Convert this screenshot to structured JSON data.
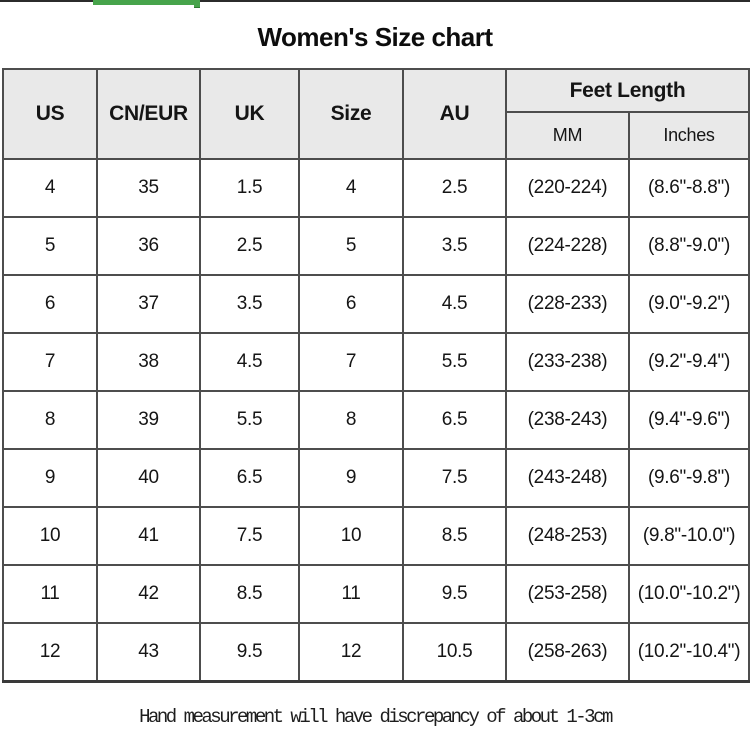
{
  "page": {
    "title": "Women's Size chart",
    "footer_note": "Hand measurement will have discrepancy of about 1-3cm"
  },
  "colors": {
    "progress_green": "#47a44b",
    "header_bg": "#e9e9e9",
    "table_border": "#4d4d4d"
  },
  "table": {
    "headers": {
      "us": "US",
      "cn_eur": "CN/EUR",
      "uk": "UK",
      "size": "Size",
      "au": "AU",
      "feet_length": "Feet Length",
      "mm": "MM",
      "inches": "Inches"
    },
    "rows": [
      [
        "4",
        "35",
        "1.5",
        "4",
        "2.5",
        "(220-224)",
        "(8.6\"-8.8\")"
      ],
      [
        "5",
        "36",
        "2.5",
        "5",
        "3.5",
        "(224-228)",
        "(8.8\"-9.0\")"
      ],
      [
        "6",
        "37",
        "3.5",
        "6",
        "4.5",
        "(228-233)",
        "(9.0\"-9.2\")"
      ],
      [
        "7",
        "38",
        "4.5",
        "7",
        "5.5",
        "(233-238)",
        "(9.2\"-9.4\")"
      ],
      [
        "8",
        "39",
        "5.5",
        "8",
        "6.5",
        "(238-243)",
        "(9.4\"-9.6\")"
      ],
      [
        "9",
        "40",
        "6.5",
        "9",
        "7.5",
        "(243-248)",
        "(9.6\"-9.8\")"
      ],
      [
        "10",
        "41",
        "7.5",
        "10",
        "8.5",
        "(248-253)",
        "(9.8\"-10.0\")"
      ],
      [
        "11",
        "42",
        "8.5",
        "11",
        "9.5",
        "(253-258)",
        "(10.0\"-10.2\")"
      ],
      [
        "12",
        "43",
        "9.5",
        "12",
        "10.5",
        "(258-263)",
        "(10.2\"-10.4\")"
      ]
    ]
  }
}
